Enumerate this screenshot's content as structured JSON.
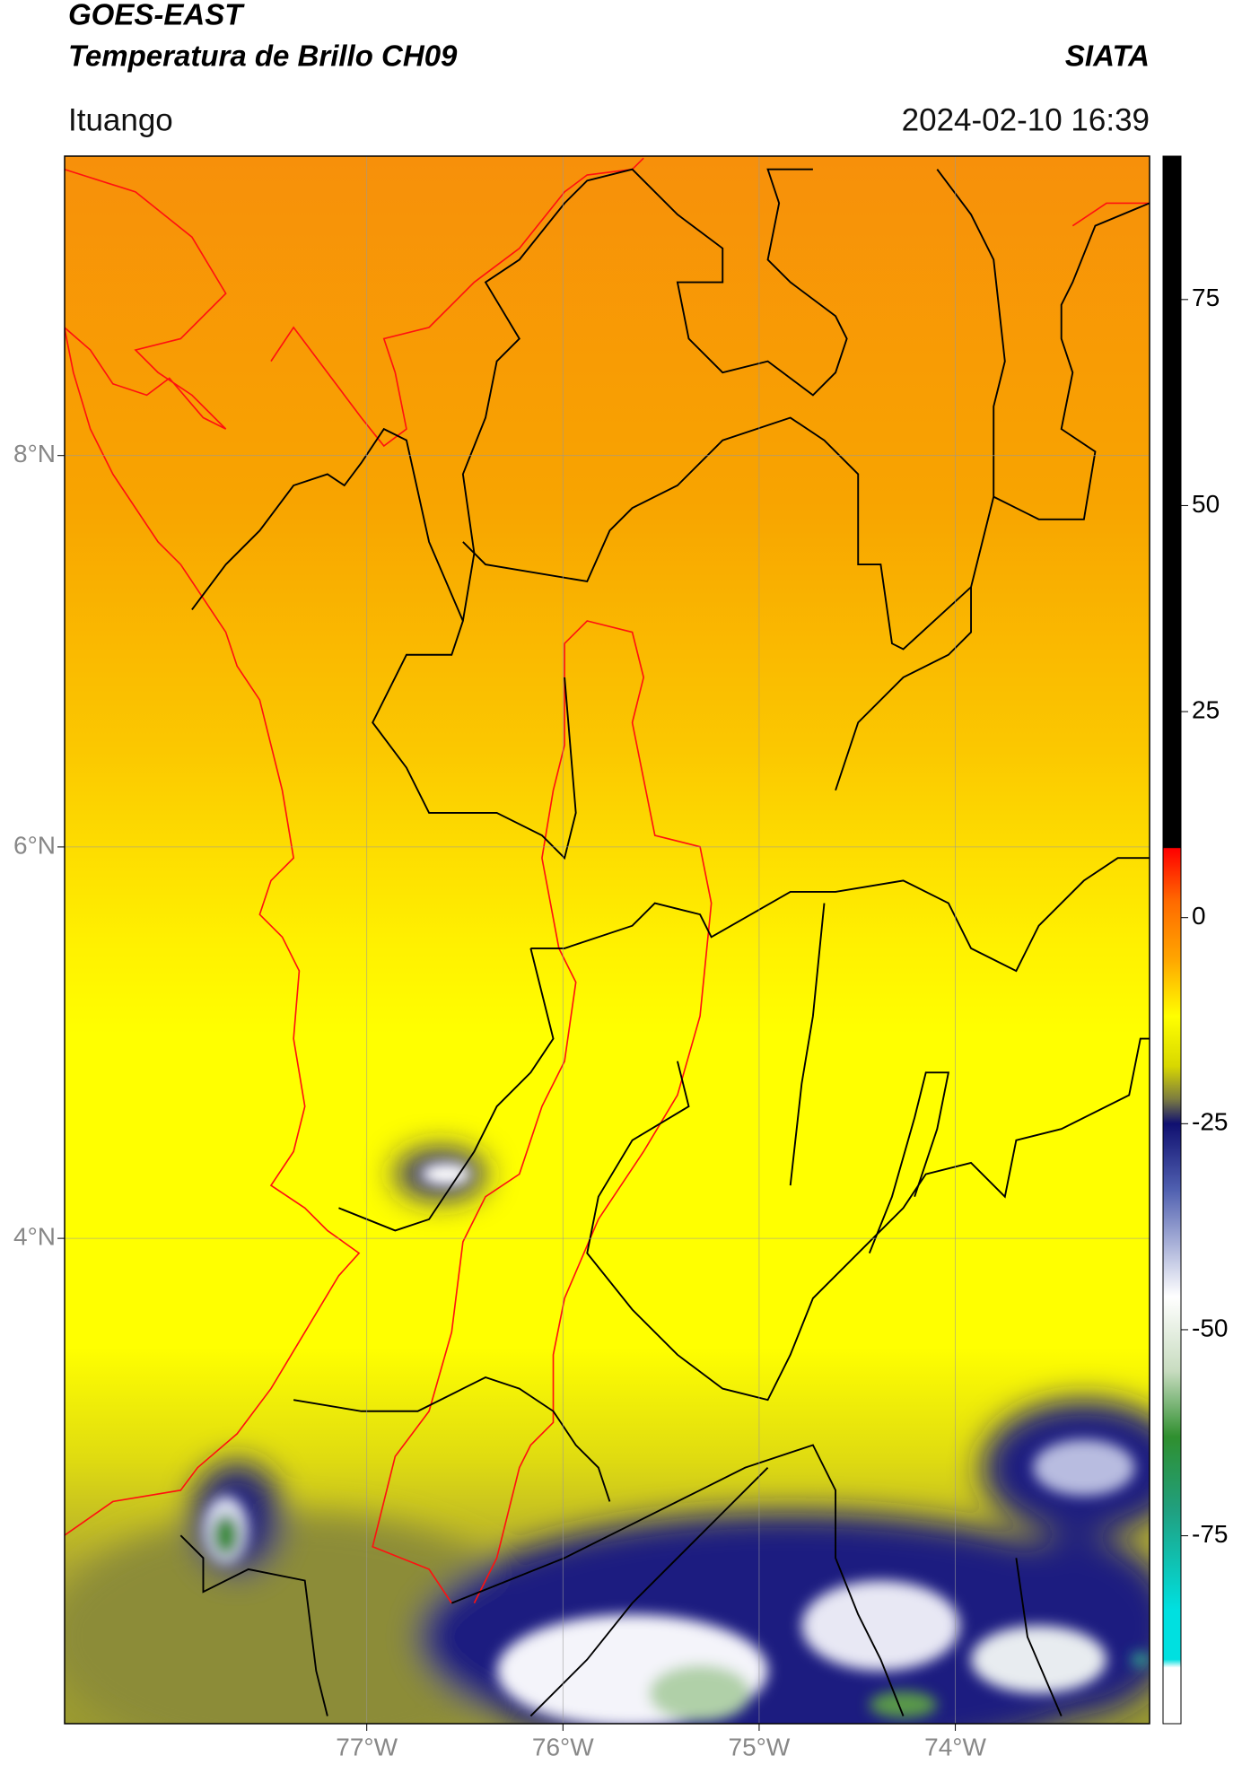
{
  "map": {
    "title": "GOES-EAST",
    "subtitle": "Temperatura de Brillo CH09",
    "source": "SIATA",
    "region": "Ituango",
    "datetime": "2024-02-10 16:39",
    "xlim": [
      -78.54,
      -73.01
    ],
    "ylim": [
      1.52,
      9.53
    ],
    "xticks": [
      {
        "value": -77,
        "label": "77°W"
      },
      {
        "value": -76,
        "label": "76°W"
      },
      {
        "value": -75,
        "label": "75°W"
      },
      {
        "value": -74,
        "label": "74°W"
      }
    ],
    "yticks": [
      {
        "value": 8,
        "label": "8°N"
      },
      {
        "value": 6,
        "label": "6°N"
      },
      {
        "value": 4,
        "label": "4°N"
      }
    ],
    "grid": true,
    "colorbar": {
      "clim": [
        -97.8,
        92.4
      ],
      "ticks": [
        75,
        50,
        25,
        0,
        -25,
        -50,
        -75
      ],
      "colormap": [
        {
          "value": 92.4,
          "color": "#000000"
        },
        {
          "value": 8.5,
          "color": "#000000"
        },
        {
          "value": 8.4,
          "color": "#ff0000"
        },
        {
          "value": 2,
          "color": "#ff6a00"
        },
        {
          "value": -5,
          "color": "#ffa500"
        },
        {
          "value": -12,
          "color": "#ffff00"
        },
        {
          "value": -18,
          "color": "#d8d800"
        },
        {
          "value": -22,
          "color": "#7c7c40"
        },
        {
          "value": -25,
          "color": "#101070"
        },
        {
          "value": -33,
          "color": "#5060b0"
        },
        {
          "value": -46,
          "color": "#ffffff"
        },
        {
          "value": -55,
          "color": "#c8dcc0"
        },
        {
          "value": -63,
          "color": "#2f8f2f"
        },
        {
          "value": -72,
          "color": "#20a080"
        },
        {
          "value": -84,
          "color": "#00e0e0"
        },
        {
          "value": -90,
          "color": "#00e0e0"
        },
        {
          "value": -91,
          "color": "#ffffff"
        },
        {
          "value": -97.8,
          "color": "#ffffff"
        }
      ]
    }
  }
}
